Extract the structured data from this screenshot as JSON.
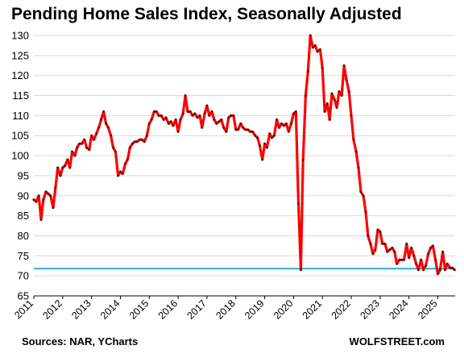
{
  "chart_data": {
    "type": "line",
    "title": "Pending Home Sales Index, Seasonally Adjusted",
    "xlabel": "",
    "ylabel": "",
    "source_note": "Sources: NAR, YCharts",
    "watermark": "WOLFSTREET.com",
    "xlim": [
      2011.0,
      2025.6
    ],
    "ylim": [
      65,
      130
    ],
    "y_ticks": [
      65,
      70,
      75,
      80,
      85,
      90,
      95,
      100,
      105,
      110,
      115,
      120,
      125,
      130
    ],
    "x_ticks": [
      "2011",
      "2012",
      "2013",
      "2014",
      "2015",
      "2016",
      "2017",
      "2018",
      "2019",
      "2020",
      "2021",
      "2022",
      "2023",
      "2024",
      "2025"
    ],
    "grid": "horizontal",
    "line_color": "#ff0000",
    "marker_color": "#222222",
    "reference_line": {
      "value": 71.8,
      "color": "#2aa7d8"
    },
    "series": [
      {
        "values": [
          [
            2011.0,
            89.0
          ],
          [
            2011.08,
            88.5
          ],
          [
            2011.17,
            90.0
          ],
          [
            2011.25,
            84.0
          ],
          [
            2011.33,
            89.0
          ],
          [
            2011.42,
            91.0
          ],
          [
            2011.5,
            90.5
          ],
          [
            2011.58,
            90.0
          ],
          [
            2011.67,
            87.0
          ],
          [
            2011.75,
            92.0
          ],
          [
            2011.83,
            97.0
          ],
          [
            2011.92,
            95.0
          ],
          [
            2012.0,
            97.0
          ],
          [
            2012.08,
            97.5
          ],
          [
            2012.17,
            99.0
          ],
          [
            2012.25,
            97.0
          ],
          [
            2012.33,
            101.0
          ],
          [
            2012.42,
            100.0
          ],
          [
            2012.5,
            102.0
          ],
          [
            2012.58,
            103.0
          ],
          [
            2012.67,
            103.0
          ],
          [
            2012.75,
            104.0
          ],
          [
            2012.83,
            102.0
          ],
          [
            2012.92,
            101.5
          ],
          [
            2013.0,
            105.0
          ],
          [
            2013.08,
            104.0
          ],
          [
            2013.17,
            105.5
          ],
          [
            2013.25,
            107.0
          ],
          [
            2013.33,
            109.0
          ],
          [
            2013.42,
            111.0
          ],
          [
            2013.5,
            108.0
          ],
          [
            2013.58,
            107.0
          ],
          [
            2013.67,
            105.0
          ],
          [
            2013.75,
            102.0
          ],
          [
            2013.83,
            101.0
          ],
          [
            2013.92,
            95.0
          ],
          [
            2014.0,
            96.0
          ],
          [
            2014.08,
            95.5
          ],
          [
            2014.17,
            98.0
          ],
          [
            2014.25,
            99.0
          ],
          [
            2014.33,
            102.0
          ],
          [
            2014.42,
            103.0
          ],
          [
            2014.5,
            103.5
          ],
          [
            2014.58,
            103.5
          ],
          [
            2014.67,
            104.0
          ],
          [
            2014.75,
            104.0
          ],
          [
            2014.83,
            103.5
          ],
          [
            2014.92,
            105.0
          ],
          [
            2015.0,
            108.0
          ],
          [
            2015.08,
            109.0
          ],
          [
            2015.17,
            111.0
          ],
          [
            2015.25,
            111.0
          ],
          [
            2015.33,
            110.0
          ],
          [
            2015.42,
            110.0
          ],
          [
            2015.5,
            109.0
          ],
          [
            2015.58,
            109.5
          ],
          [
            2015.67,
            108.0
          ],
          [
            2015.75,
            108.5
          ],
          [
            2015.83,
            107.5
          ],
          [
            2015.92,
            109.0
          ],
          [
            2016.0,
            106.0
          ],
          [
            2016.08,
            109.0
          ],
          [
            2016.17,
            110.5
          ],
          [
            2016.25,
            115.0
          ],
          [
            2016.33,
            111.0
          ],
          [
            2016.42,
            111.0
          ],
          [
            2016.5,
            110.0
          ],
          [
            2016.58,
            110.5
          ],
          [
            2016.67,
            109.5
          ],
          [
            2016.75,
            110.0
          ],
          [
            2016.83,
            107.0
          ],
          [
            2016.92,
            110.5
          ],
          [
            2017.0,
            112.5
          ],
          [
            2017.08,
            110.0
          ],
          [
            2017.17,
            111.0
          ],
          [
            2017.25,
            109.0
          ],
          [
            2017.33,
            108.0
          ],
          [
            2017.42,
            108.5
          ],
          [
            2017.5,
            109.0
          ],
          [
            2017.58,
            107.0
          ],
          [
            2017.67,
            106.0
          ],
          [
            2017.75,
            109.5
          ],
          [
            2017.83,
            110.0
          ],
          [
            2017.92,
            110.0
          ],
          [
            2018.0,
            106.5
          ],
          [
            2018.08,
            106.5
          ],
          [
            2018.17,
            108.0
          ],
          [
            2018.25,
            107.0
          ],
          [
            2018.33,
            106.5
          ],
          [
            2018.42,
            106.5
          ],
          [
            2018.5,
            106.0
          ],
          [
            2018.58,
            106.0
          ],
          [
            2018.67,
            105.0
          ],
          [
            2018.75,
            104.5
          ],
          [
            2018.83,
            102.5
          ],
          [
            2018.92,
            99.0
          ],
          [
            2019.0,
            103.0
          ],
          [
            2019.08,
            102.0
          ],
          [
            2019.17,
            105.5
          ],
          [
            2019.25,
            104.5
          ],
          [
            2019.33,
            105.0
          ],
          [
            2019.42,
            109.0
          ],
          [
            2019.5,
            107.0
          ],
          [
            2019.58,
            108.0
          ],
          [
            2019.67,
            107.5
          ],
          [
            2019.75,
            108.0
          ],
          [
            2019.83,
            106.0
          ],
          [
            2019.92,
            108.0
          ],
          [
            2020.0,
            110.5
          ],
          [
            2020.08,
            111.0
          ],
          [
            2020.17,
            88.0
          ],
          [
            2020.25,
            71.5
          ],
          [
            2020.33,
            99.0
          ],
          [
            2020.42,
            115.0
          ],
          [
            2020.5,
            121.0
          ],
          [
            2020.58,
            130.0
          ],
          [
            2020.67,
            127.0
          ],
          [
            2020.75,
            127.5
          ],
          [
            2020.83,
            126.0
          ],
          [
            2020.92,
            126.5
          ],
          [
            2021.0,
            122.0
          ],
          [
            2021.08,
            111.0
          ],
          [
            2021.17,
            113.0
          ],
          [
            2021.25,
            109.0
          ],
          [
            2021.33,
            115.5
          ],
          [
            2021.42,
            114.0
          ],
          [
            2021.5,
            112.0
          ],
          [
            2021.58,
            116.0
          ],
          [
            2021.67,
            115.0
          ],
          [
            2021.75,
            122.5
          ],
          [
            2021.83,
            119.0
          ],
          [
            2021.92,
            116.0
          ],
          [
            2022.0,
            110.0
          ],
          [
            2022.08,
            104.0
          ],
          [
            2022.17,
            101.0
          ],
          [
            2022.25,
            97.0
          ],
          [
            2022.33,
            91.0
          ],
          [
            2022.42,
            90.0
          ],
          [
            2022.5,
            86.0
          ],
          [
            2022.58,
            80.0
          ],
          [
            2022.67,
            78.0
          ],
          [
            2022.75,
            75.5
          ],
          [
            2022.83,
            76.5
          ],
          [
            2022.92,
            81.5
          ],
          [
            2023.0,
            81.0
          ],
          [
            2023.08,
            78.0
          ],
          [
            2023.17,
            78.0
          ],
          [
            2023.25,
            76.0
          ],
          [
            2023.33,
            76.5
          ],
          [
            2023.42,
            77.0
          ],
          [
            2023.5,
            76.0
          ],
          [
            2023.58,
            73.0
          ],
          [
            2023.67,
            74.0
          ],
          [
            2023.75,
            74.0
          ],
          [
            2023.83,
            74.0
          ],
          [
            2023.92,
            78.0
          ],
          [
            2024.0,
            74.5
          ],
          [
            2024.08,
            77.0
          ],
          [
            2024.17,
            75.0
          ],
          [
            2024.25,
            73.0
          ],
          [
            2024.33,
            71.5
          ],
          [
            2024.42,
            74.0
          ],
          [
            2024.5,
            71.5
          ],
          [
            2024.58,
            72.5
          ],
          [
            2024.67,
            75.5
          ],
          [
            2024.75,
            77.0
          ],
          [
            2024.83,
            77.5
          ],
          [
            2024.92,
            74.0
          ],
          [
            2025.0,
            70.5
          ],
          [
            2025.08,
            71.5
          ],
          [
            2025.17,
            76.0
          ],
          [
            2025.25,
            71.5
          ],
          [
            2025.33,
            73.0
          ],
          [
            2025.42,
            72.0
          ],
          [
            2025.5,
            72.0
          ],
          [
            2025.58,
            71.5
          ]
        ]
      }
    ]
  }
}
